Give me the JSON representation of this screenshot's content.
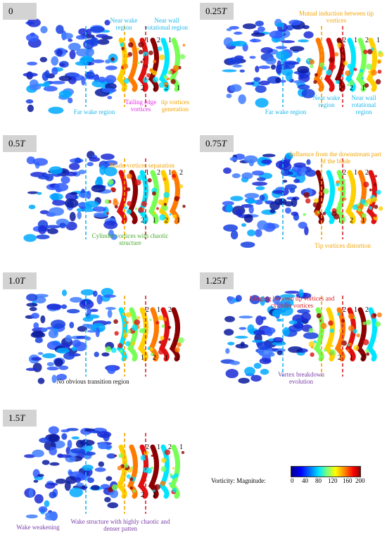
{
  "panels": [
    {
      "label": "0",
      "italic_suffix": "",
      "annotations": [
        "Near wake region",
        "Near wall rotational region",
        "Far wake region",
        "Tailing edge vortices",
        "tip vortices generation"
      ],
      "numbers_top": [
        "1",
        "2",
        "1"
      ],
      "numbers_bottom": [
        "2",
        "1",
        "2",
        "1"
      ]
    },
    {
      "label": "0.25",
      "italic_suffix": "T",
      "annotations": [
        "Mutual induction between tip vortices",
        "Far wake region",
        "Near wake region",
        "Near wall rotational region"
      ],
      "numbers_top": [
        "2",
        "1",
        "2",
        "1"
      ],
      "numbers_bottom": [
        "1",
        "2",
        "1"
      ]
    },
    {
      "label": "0.5",
      "italic_suffix": "T",
      "annotations": [
        "Blade-vortices separation",
        "Cylinder vortices with chaotic structure"
      ],
      "numbers_top": [
        "1",
        "2",
        "1",
        "2"
      ],
      "numbers_bottom": [
        "2",
        "1",
        "2",
        "1"
      ]
    },
    {
      "label": "0.75",
      "italic_suffix": "T",
      "annotations": [
        "Influence from the downstream part of the blade",
        "Tip vortices distortion"
      ],
      "numbers_top": [
        "2",
        "1",
        "2"
      ],
      "numbers_bottom": [
        "1",
        "2",
        "1"
      ]
    },
    {
      "label": "1.0",
      "italic_suffix": "T",
      "annotations": [
        "No obvious transition region"
      ],
      "numbers_top": [
        "2",
        "1",
        "2"
      ],
      "numbers_bottom": [
        "1",
        "2",
        "1",
        "2"
      ]
    },
    {
      "label": "1.25",
      "italic_suffix": "T",
      "annotations": [
        "Merging  between tip vortices and cylinder vortices",
        "Vortex breakdown evolution"
      ],
      "numbers_top": [
        "2",
        "1",
        "2"
      ],
      "numbers_bottom": [
        "2",
        "1",
        "2"
      ]
    },
    {
      "label": "1.5",
      "italic_suffix": "T",
      "annotations": [
        "Wake structure with highly chaotic and denser patten",
        "Wake weakening"
      ],
      "numbers_top": [
        "2",
        "1",
        "2",
        "1"
      ],
      "numbers_bottom": [
        "2",
        "1"
      ]
    }
  ],
  "colorbar": {
    "title": "Vorticity: Magnitude:",
    "ticks": [
      "0",
      "40",
      "80",
      "120",
      "160",
      "200"
    ]
  },
  "colors": {
    "cyan": "#1fb7ea",
    "orange": "#f4a400",
    "magenta": "#e62ee6",
    "green": "#49a82c",
    "purple": "#7b3fa8",
    "red": "#d91f26"
  }
}
